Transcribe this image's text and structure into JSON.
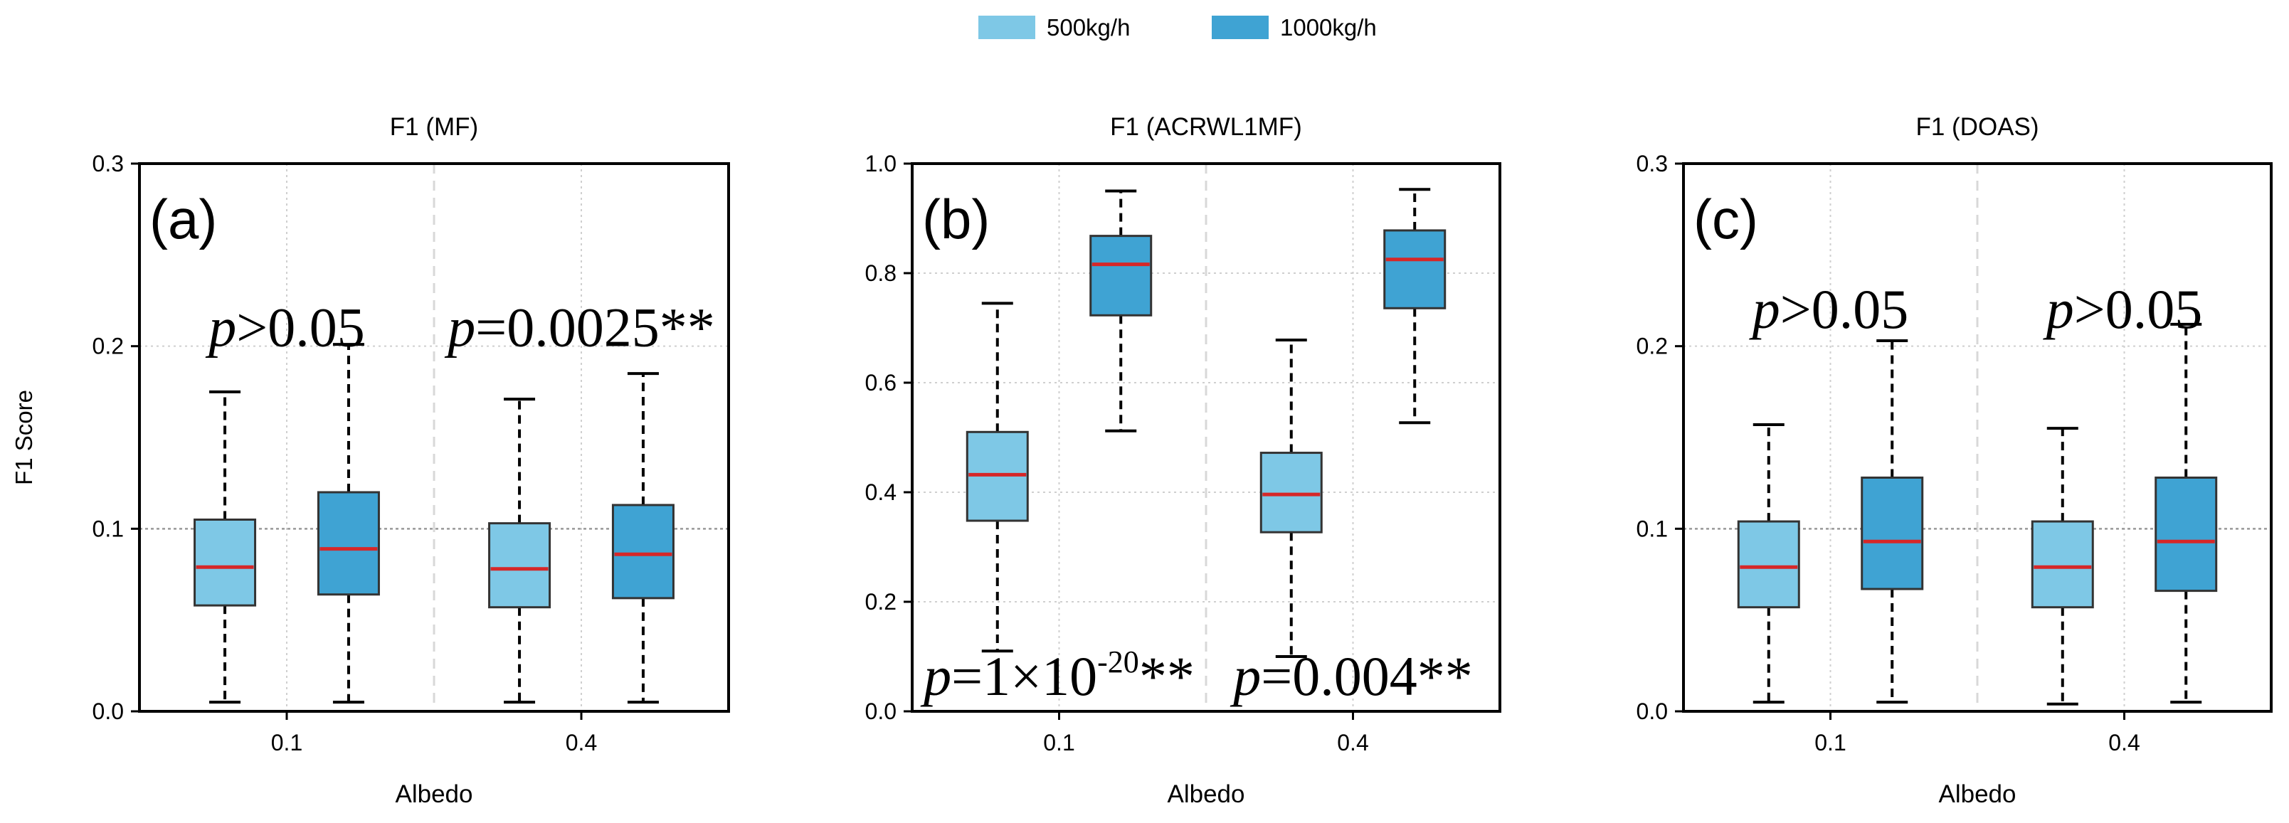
{
  "legend": {
    "placement": "top-center",
    "items": [
      {
        "label": "500kg/h",
        "color": "#7EC8E6"
      },
      {
        "label": "1000kg/h",
        "color": "#3FA3D3"
      }
    ]
  },
  "colors": {
    "median": "#D62728",
    "box_edge": "#333333",
    "grid": "#cfcfcf",
    "hline": "#999999"
  },
  "chart_data": [
    {
      "type": "box",
      "panel_label": "(a)",
      "title": "F1 (MF)",
      "xlabel": "Albedo",
      "ylabel": "F1 Score",
      "categories": [
        "0.1",
        "0.4"
      ],
      "ylim": [
        0,
        0.3
      ],
      "yticks": [
        0.0,
        0.1,
        0.2,
        0.3
      ],
      "ytick_labels": [
        "0.0",
        "0.1",
        "0.2",
        "0.3"
      ],
      "reference_line": 0.1,
      "series": [
        {
          "name": "500kg/h",
          "boxes": [
            {
              "category": "0.1",
              "min": 0.005,
              "q1": 0.058,
              "median": 0.079,
              "q3": 0.105,
              "max": 0.175
            },
            {
              "category": "0.4",
              "min": 0.005,
              "q1": 0.057,
              "median": 0.078,
              "q3": 0.103,
              "max": 0.171
            }
          ]
        },
        {
          "name": "1000kg/h",
          "boxes": [
            {
              "category": "0.1",
              "min": 0.005,
              "q1": 0.064,
              "median": 0.089,
              "q3": 0.12,
              "max": 0.201
            },
            {
              "category": "0.4",
              "min": 0.005,
              "q1": 0.062,
              "median": 0.086,
              "q3": 0.113,
              "max": 0.185
            }
          ]
        }
      ],
      "annotations": [
        {
          "category": "0.1",
          "y": 0.2,
          "italic": "p",
          "text": ">0.05",
          "sup": "",
          "suffix": ""
        },
        {
          "category": "0.4",
          "y": 0.2,
          "italic": "p",
          "text": "=0.0025**",
          "sup": "",
          "suffix": ""
        }
      ]
    },
    {
      "type": "box",
      "panel_label": "(b)",
      "title": "F1 (ACRWL1MF)",
      "xlabel": "Albedo",
      "ylabel": "",
      "categories": [
        "0.1",
        "0.4"
      ],
      "ylim": [
        0,
        1.0
      ],
      "yticks": [
        0.0,
        0.2,
        0.4,
        0.6,
        0.8,
        1.0
      ],
      "ytick_labels": [
        "0.0",
        "0.2",
        "0.4",
        "0.6",
        "0.8",
        "1.0"
      ],
      "reference_line": null,
      "series": [
        {
          "name": "500kg/h",
          "boxes": [
            {
              "category": "0.1",
              "min": 0.11,
              "q1": 0.348,
              "median": 0.432,
              "q3": 0.51,
              "max": 0.745
            },
            {
              "category": "0.4",
              "min": 0.1,
              "q1": 0.327,
              "median": 0.396,
              "q3": 0.472,
              "max": 0.678
            }
          ]
        },
        {
          "name": "1000kg/h",
          "boxes": [
            {
              "category": "0.1",
              "min": 0.512,
              "q1": 0.723,
              "median": 0.816,
              "q3": 0.868,
              "max": 0.95
            },
            {
              "category": "0.4",
              "min": 0.527,
              "q1": 0.736,
              "median": 0.825,
              "q3": 0.878,
              "max": 0.953
            }
          ]
        }
      ],
      "annotations": [
        {
          "category": "0.1",
          "y": 0.03,
          "italic": "p",
          "text": "=1×10",
          "sup": "-20",
          "suffix": "**"
        },
        {
          "category": "0.4",
          "y": 0.03,
          "italic": "p",
          "text": "=0.004**",
          "sup": "",
          "suffix": ""
        }
      ]
    },
    {
      "type": "box",
      "panel_label": "(c)",
      "title": "F1 (DOAS)",
      "xlabel": "Albedo",
      "ylabel": "",
      "categories": [
        "0.1",
        "0.4"
      ],
      "ylim": [
        0,
        0.3
      ],
      "yticks": [
        0.0,
        0.1,
        0.2,
        0.3
      ],
      "ytick_labels": [
        "0.0",
        "0.1",
        "0.2",
        "0.3"
      ],
      "reference_line": 0.1,
      "series": [
        {
          "name": "500kg/h",
          "boxes": [
            {
              "category": "0.1",
              "min": 0.005,
              "q1": 0.057,
              "median": 0.079,
              "q3": 0.104,
              "max": 0.157
            },
            {
              "category": "0.4",
              "min": 0.004,
              "q1": 0.057,
              "median": 0.079,
              "q3": 0.104,
              "max": 0.155
            }
          ]
        },
        {
          "name": "1000kg/h",
          "boxes": [
            {
              "category": "0.1",
              "min": 0.005,
              "q1": 0.067,
              "median": 0.093,
              "q3": 0.128,
              "max": 0.203
            },
            {
              "category": "0.4",
              "min": 0.005,
              "q1": 0.066,
              "median": 0.093,
              "q3": 0.128,
              "max": 0.212
            }
          ]
        }
      ],
      "annotations": [
        {
          "category": "0.1",
          "y": 0.21,
          "italic": "p",
          "text": ">0.05",
          "sup": "",
          "suffix": ""
        },
        {
          "category": "0.4",
          "y": 0.21,
          "italic": "p",
          "text": ">0.05",
          "sup": "",
          "suffix": ""
        }
      ]
    }
  ]
}
